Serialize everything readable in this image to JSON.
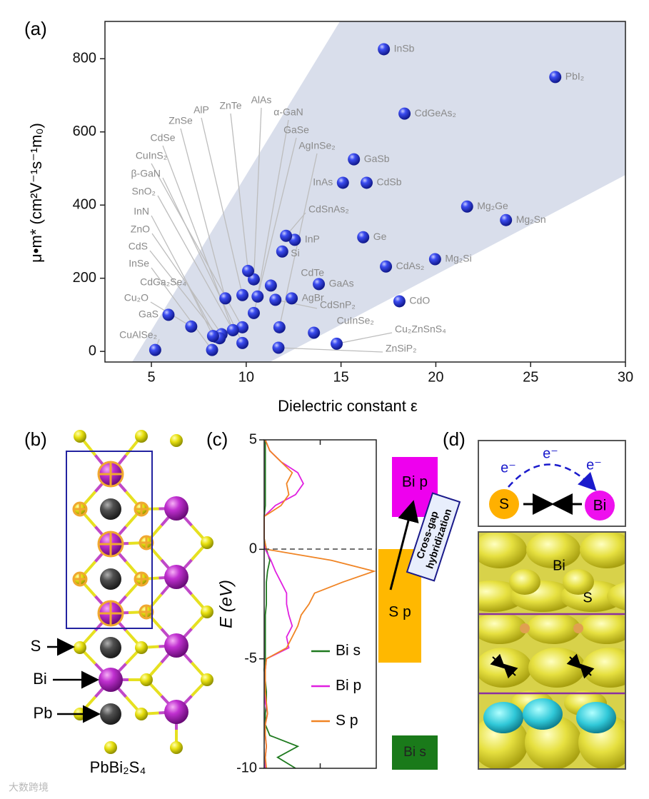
{
  "panel_labels": [
    "(a)",
    "(b)",
    "(c)",
    "(d)"
  ],
  "chart_data": [
    {
      "type": "scatter",
      "xlabel": "Dielectric constant  ε",
      "ylabel": "μ•m* (cm²V⁻¹s⁻¹m₀)",
      "xlim": [
        2.55,
        30
      ],
      "xticks": [
        5,
        10,
        15,
        20,
        25,
        30
      ],
      "ylim": [
        -29,
        902
      ],
      "yticks": [
        0,
        200,
        400,
        600,
        800
      ],
      "color": "#2b3de0",
      "point_labels": [
        "InSb",
        "PbI₂",
        "CdGeAs₂",
        "GaSb",
        "InAs",
        "CdSb",
        "Mg₂Ge",
        "Mg₂Sn",
        "Ge",
        "InP",
        "CdSnAs₂",
        "Si",
        "Mg₂Si",
        "CdAs₂",
        "GaAs",
        "CdO",
        "CdTe",
        "AgBr",
        "CdSnP₂",
        "CuInSe₂",
        "Cu₂ZnSnS₄",
        "ZnSiP₂",
        "AlAs",
        "ZnTe",
        "AlP",
        "α-GaN",
        "ZnSe",
        "GaSe",
        "CdSe",
        "AgInSe₂",
        "CuInS₂",
        "β-GaN",
        "SnO₂",
        "InN",
        "ZnO",
        "CdS",
        "InSe",
        "CdGa₂Se₄",
        "Cu₂O",
        "GaS",
        "CuAlSe₂"
      ],
      "x": [
        17.26,
        26.3,
        18.35,
        15.68,
        15.1,
        16.35,
        21.65,
        23.7,
        16.17,
        12.56,
        12.1,
        11.9,
        19.96,
        17.37,
        13.83,
        18.08,
        11.3,
        12.4,
        11.54,
        13.57,
        14.77,
        11.7,
        10.4,
        10.1,
        9.8,
        10.6,
        8.9,
        10.4,
        9.3,
        11.75,
        9.8,
        9.8,
        9.3,
        8.4,
        8.7,
        8.6,
        8.2,
        8.25,
        7.1,
        5.9,
        5.2
      ],
      "values": [
        826,
        750,
        650,
        525,
        461,
        461,
        396,
        359,
        312,
        305,
        316,
        273,
        252,
        232,
        184,
        137,
        180,
        145,
        141,
        51,
        21,
        10,
        197,
        220,
        154,
        150,
        145,
        105,
        58,
        66,
        66,
        23,
        58,
        40,
        47,
        36,
        4,
        42,
        68,
        100,
        4
      ]
    },
    {
      "type": "line",
      "ylabel": "E (eV)",
      "ylim": [
        -10,
        5
      ],
      "yticks": [
        -10,
        -5,
        0,
        5
      ],
      "xlim": [
        0,
        1
      ],
      "xticks": [
        0.5
      ],
      "energies": [
        -10,
        -9.5,
        -9,
        -8.5,
        -8,
        -7.5,
        -7,
        -6.5,
        -6,
        -5.5,
        -5,
        -4.5,
        -4,
        -3.5,
        -3,
        -2.5,
        -2,
        -1.5,
        -1,
        -0.5,
        0,
        0.5,
        1,
        1.5,
        2,
        2.5,
        3,
        3.5,
        4,
        4.5,
        5
      ],
      "series": [
        {
          "name": "Bi s",
          "color": "#1f7a1f",
          "values": [
            0.28,
            0.12,
            0.3,
            0.05,
            0.01,
            0.01,
            0.02,
            0.02,
            0.01,
            0,
            0.01,
            0.01,
            0.01,
            0.01,
            0.01,
            0.02,
            0.02,
            0.02,
            0.03,
            0.05,
            0.02,
            0,
            0,
            0,
            0.01,
            0.01,
            0.01,
            0.01,
            0.01,
            0.01,
            0.01
          ]
        },
        {
          "name": "Bi p",
          "color": "#e020e0",
          "values": [
            0.01,
            0.01,
            0.02,
            0.01,
            0.01,
            0.03,
            0.01,
            0.01,
            0.01,
            0.01,
            0.02,
            0.22,
            0.2,
            0.25,
            0.22,
            0.2,
            0.2,
            0.15,
            0.1,
            0.06,
            0.01,
            0,
            0,
            0,
            0.1,
            0.28,
            0.35,
            0.3,
            0.15,
            0.05,
            0.01
          ]
        },
        {
          "name": "S p",
          "color": "#f08424",
          "values": [
            0.02,
            0.01,
            0.02,
            0.01,
            0.01,
            0.03,
            0.02,
            0.01,
            0.01,
            0.01,
            0.02,
            0.2,
            0.25,
            0.3,
            0.33,
            0.4,
            0.45,
            0.7,
            0.98,
            0.6,
            0.02,
            0,
            0,
            0,
            0.15,
            0.22,
            0.2,
            0.25,
            0.15,
            0.05,
            0.01
          ]
        }
      ],
      "band_labels": [
        "Bi p",
        "S p",
        "Bi s"
      ],
      "annotation": [
        "Cross-gap",
        "hybridization"
      ]
    }
  ],
  "structure": {
    "s": "S",
    "bi": "Bi",
    "pb": "Pb",
    "formula": "PbBi₂S₄"
  },
  "hybridization": {
    "electrons": [
      "e⁻",
      "e⁻",
      "e⁻"
    ],
    "s": "S",
    "bi": "Bi",
    "density_bi": "Bi",
    "density_s": "S"
  },
  "watermark": "大数跨境"
}
